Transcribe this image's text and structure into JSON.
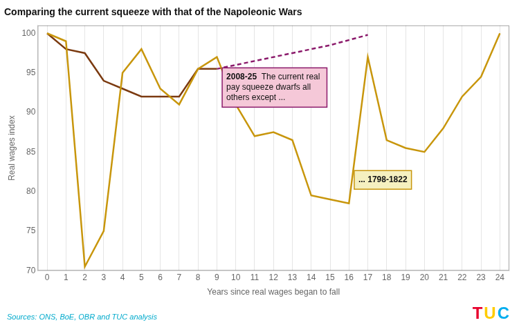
{
  "chart_data": {
    "type": "line",
    "title": "Comparing the current squeeze with that of the Napoleonic Wars",
    "x_label": "Years since real wages began to fall",
    "y_label": "Real wages index",
    "source": "Sources: ONS, BoE, OBR and TUC analysis",
    "xlim": [
      -0.5,
      24.5
    ],
    "xticks": [
      0,
      1,
      2,
      3,
      4,
      5,
      6,
      7,
      8,
      9,
      10,
      11,
      12,
      13,
      14,
      15,
      16,
      17,
      18,
      19,
      20,
      21,
      22,
      23,
      24
    ],
    "ylim": [
      70,
      101
    ],
    "yticks": [
      70,
      75,
      80,
      85,
      90,
      95,
      100
    ],
    "grid": "x",
    "series": [
      {
        "color": "#c8960c",
        "line_style": "solid",
        "x": [
          0,
          1,
          2,
          3,
          4,
          5,
          6,
          7,
          8,
          9,
          10,
          11,
          12,
          13,
          14,
          15,
          16,
          17,
          18,
          19,
          20,
          21,
          22,
          23,
          24
        ],
        "values": [
          100,
          99,
          70.5,
          75,
          95,
          98,
          93,
          91,
          95.5,
          97,
          91,
          87,
          87.5,
          86.5,
          79.5,
          79,
          78.5,
          97,
          86.5,
          85.5,
          85,
          88,
          92,
          94.5,
          100
        ]
      },
      {
        "color": "#7b3a10",
        "line_style": "solid",
        "x": [
          0,
          1,
          2,
          3,
          4,
          5,
          6,
          7,
          8,
          9
        ],
        "values": [
          100,
          98,
          97.5,
          94,
          93,
          92,
          92,
          92,
          95.5,
          95.5
        ]
      },
      {
        "color": "#8b1a6b",
        "line_style": "dashed",
        "x": [
          9,
          11,
          13,
          15,
          17
        ],
        "values": [
          95.5,
          96.5,
          97.5,
          98.5,
          99.8
        ]
      }
    ],
    "annotations": [
      {
        "text": "2008-25  The current real\npay squeeze dwarfs all\nothers except ...",
        "color": "#f5c8d8",
        "border_color": "#8b1a6b"
      },
      {
        "text": "... 1798-1822",
        "color": "#f5f0c0",
        "border_color": "#c8960c"
      }
    ],
    "logo": {
      "text": "TUC",
      "colors": [
        "#e8002d",
        "#ffcc00",
        "#00adef"
      ]
    }
  }
}
